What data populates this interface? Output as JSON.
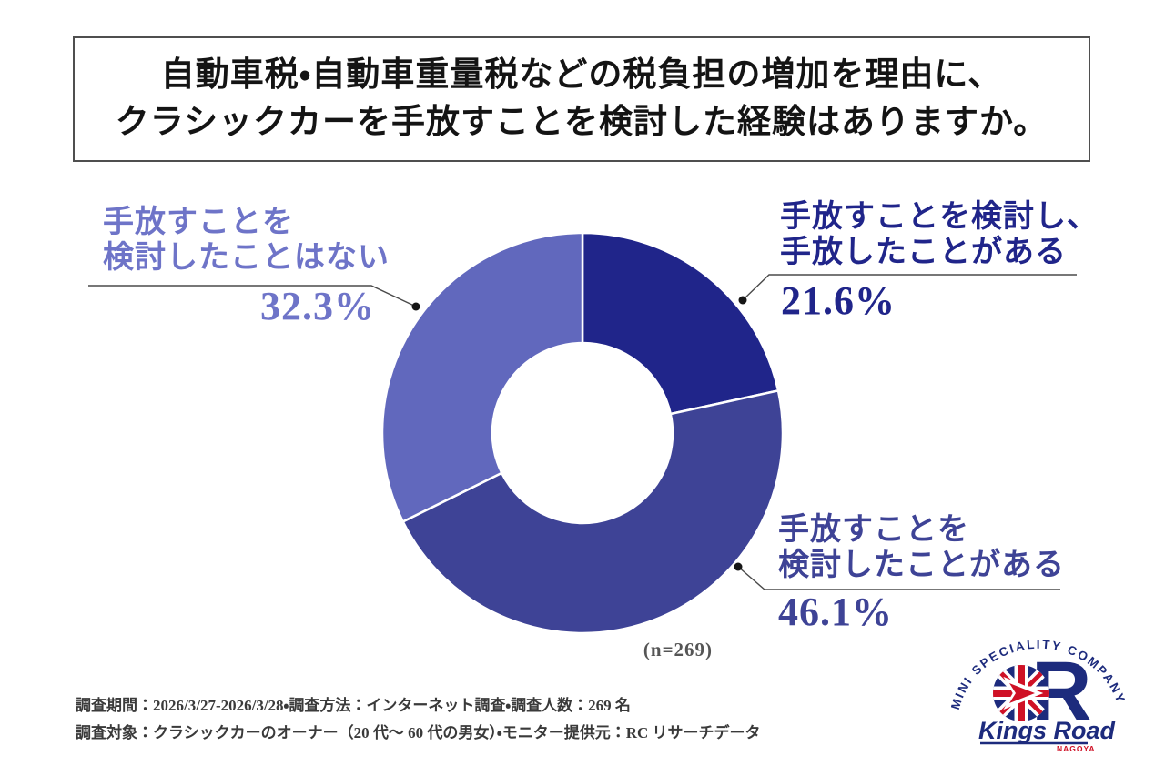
{
  "title": {
    "line1": "自動車税・自動車重量税などの税負担の増加を理由に、",
    "line2": "クラシックカーを手放すことを検討した経験はありますか。"
  },
  "chart_data": {
    "type": "pie",
    "subtype": "donut",
    "start_angle_deg": 0,
    "direction": "clockwise",
    "n_label": "(n=269)",
    "sample_size": 269,
    "legend_position": "callouts-with-leader-lines",
    "slices": [
      {
        "label": "手放すことを検討し、手放したことがある",
        "label_lines": [
          "手放すことを検討し、",
          "手放したことがある"
        ],
        "value": 21.6,
        "value_label": "21.6%",
        "color": "#20258a"
      },
      {
        "label": "手放すことを検討したことがある",
        "label_lines": [
          "手放すことを",
          "検討したことがある"
        ],
        "value": 46.1,
        "value_label": "46.1%",
        "color": "#3e4396"
      },
      {
        "label": "手放すことを検討したことはない",
        "label_lines": [
          "手放すことを",
          "検討したことはない"
        ],
        "value": 32.3,
        "value_label": "32.3%",
        "color": "#6168bd"
      }
    ]
  },
  "footer": {
    "line1": "調査期間：2026/3/27-2026/3/28・調査方法：インターネット調査・調査人数：269 名",
    "line2": "調査対象：クラシックカーのオーナー（20 代〜 60 代の男女）・モニター提供元：RC リサーチデータ"
  },
  "logo": {
    "arc_text": "MINI SPECIALITY COMPANY",
    "brand": "Kings Road",
    "sub_brand": "NAGOYA",
    "letter_r": "R",
    "navy": "#1d2b7d",
    "red": "#cf1126"
  }
}
